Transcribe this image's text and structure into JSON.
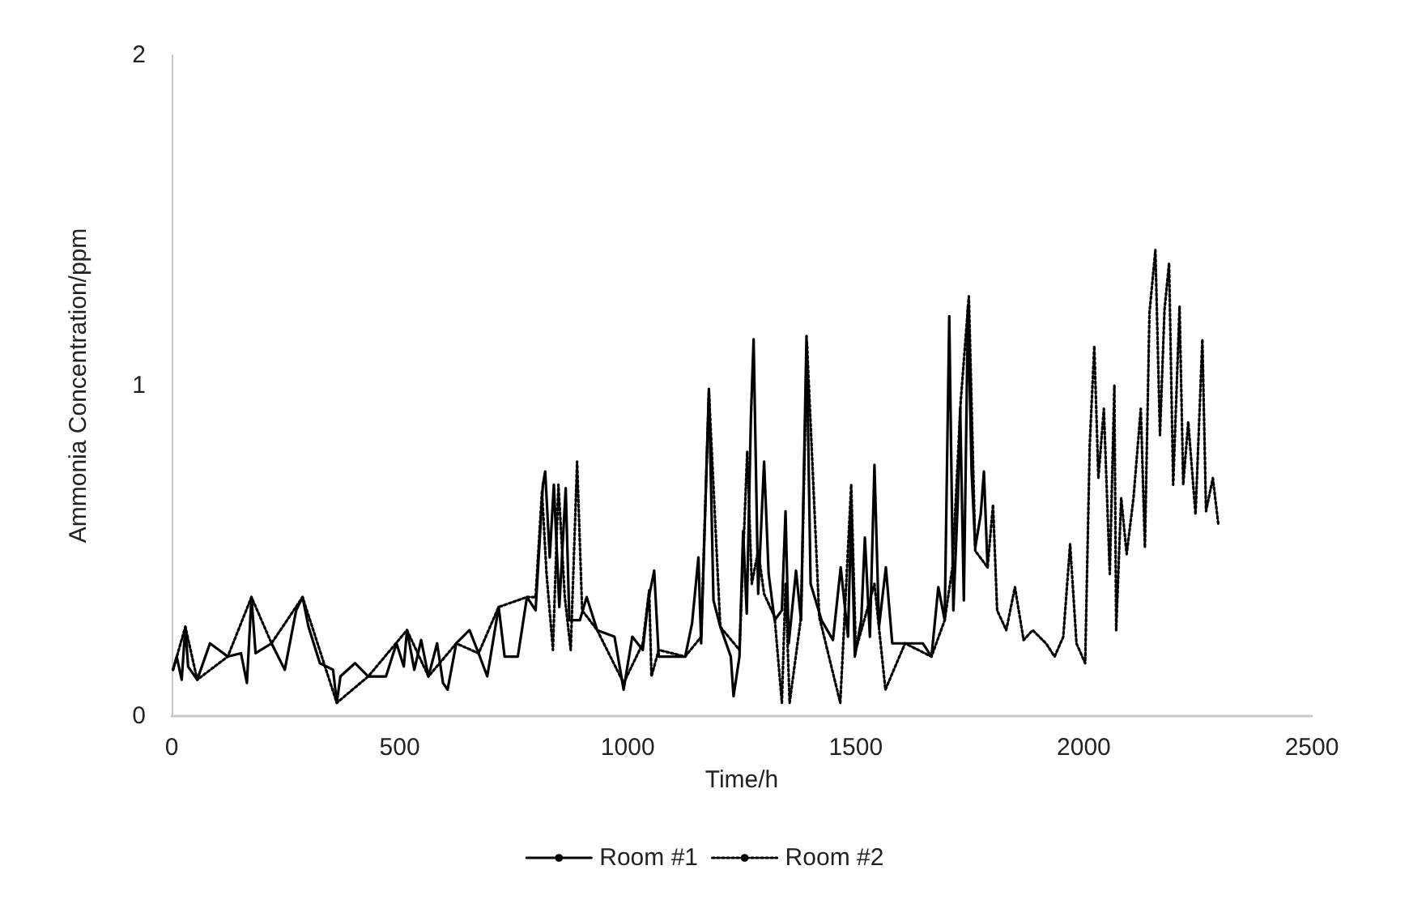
{
  "chart_data": {
    "type": "line",
    "xlabel": "Time/h",
    "ylabel": "Ammonia Concentration/ppm",
    "xlim": [
      0,
      2500
    ],
    "xticks": [
      0,
      500,
      1000,
      1500,
      2000,
      2500
    ],
    "ylim": [
      0,
      2
    ],
    "yticks": [
      0,
      1,
      2
    ],
    "grid": false,
    "legend": "bottom",
    "marker": "none",
    "series": [
      {
        "name": "Room #1",
        "color": "#000000",
        "line_style": "solid",
        "x": [
          3,
          11,
          22,
          30,
          36,
          56,
          84,
          123,
          152,
          165,
          175,
          184,
          219,
          248,
          273,
          287,
          300,
          325,
          354,
          362,
          370,
          402,
          431,
          470,
          493,
          509,
          516,
          532,
          547,
          563,
          582,
          595,
          605,
          624,
          653,
          673,
          692,
          717,
          730,
          759,
          779,
          798,
          814,
          819,
          829,
          838,
          850,
          864,
          872,
          895,
          910,
          933,
          971,
          991,
          1010,
          1033,
          1045,
          1058,
          1068,
          1097,
          1126,
          1141,
          1155,
          1161,
          1178,
          1188,
          1203,
          1226,
          1232,
          1245,
          1253,
          1261,
          1270,
          1276,
          1286,
          1299,
          1309,
          1322,
          1338,
          1346,
          1353,
          1369,
          1380,
          1392,
          1401,
          1425,
          1450,
          1467,
          1483,
          1490,
          1498,
          1512,
          1520,
          1531,
          1541,
          1551,
          1566,
          1580,
          1608,
          1647,
          1666,
          1681,
          1695,
          1705,
          1714,
          1724,
          1729,
          1737,
          1746,
          1754,
          1762,
          1774,
          1781,
          1789
        ],
        "values": [
          0.14,
          0.18,
          0.11,
          0.27,
          0.15,
          0.11,
          0.22,
          0.18,
          0.19,
          0.1,
          0.36,
          0.19,
          0.22,
          0.14,
          0.32,
          0.36,
          0.27,
          0.16,
          0.14,
          0.04,
          0.12,
          0.16,
          0.12,
          0.12,
          0.22,
          0.15,
          0.26,
          0.14,
          0.23,
          0.12,
          0.22,
          0.1,
          0.08,
          0.22,
          0.26,
          0.19,
          0.12,
          0.33,
          0.18,
          0.18,
          0.36,
          0.32,
          0.7,
          0.74,
          0.48,
          0.7,
          0.33,
          0.69,
          0.29,
          0.29,
          0.36,
          0.26,
          0.24,
          0.08,
          0.24,
          0.2,
          0.35,
          0.44,
          0.18,
          0.18,
          0.18,
          0.28,
          0.48,
          0.22,
          0.99,
          0.35,
          0.27,
          0.18,
          0.06,
          0.18,
          0.56,
          0.31,
          0.9,
          1.14,
          0.37,
          0.77,
          0.43,
          0.29,
          0.32,
          0.62,
          0.22,
          0.44,
          0.29,
          1.15,
          0.4,
          0.29,
          0.23,
          0.45,
          0.24,
          0.61,
          0.18,
          0.29,
          0.54,
          0.24,
          0.76,
          0.27,
          0.45,
          0.22,
          0.22,
          0.22,
          0.18,
          0.39,
          0.29,
          1.21,
          0.32,
          0.66,
          0.93,
          0.35,
          1.24,
          0.74,
          0.51,
          0.61,
          0.74,
          0.45
        ]
      },
      {
        "name": "Room #2",
        "color": "#000000",
        "line_style": "dotted",
        "x": [
          3,
          30,
          56,
          123,
          175,
          219,
          287,
          362,
          431,
          516,
          563,
          624,
          673,
          717,
          779,
          798,
          812,
          822,
          836,
          848,
          862,
          875,
          889,
          900,
          933,
          991,
          1033,
          1047,
          1052,
          1068,
          1126,
          1161,
          1178,
          1203,
          1245,
          1262,
          1272,
          1286,
          1299,
          1322,
          1338,
          1346,
          1355,
          1380,
          1393,
          1420,
          1466,
          1490,
          1500,
          1541,
          1565,
          1608,
          1666,
          1695,
          1712,
          1730,
          1748,
          1762,
          1789,
          1801,
          1810,
          1830,
          1849,
          1868,
          1888,
          1917,
          1936,
          1955,
          1970,
          1984,
          2003,
          2013,
          2023,
          2032,
          2044,
          2057,
          2067,
          2071,
          2082,
          2094,
          2109,
          2125,
          2134,
          2144,
          2157,
          2167,
          2177,
          2187,
          2196,
          2210,
          2218,
          2229,
          2245,
          2260,
          2268,
          2283,
          2295
        ],
        "values": [
          0.14,
          0.27,
          0.11,
          0.18,
          0.36,
          0.22,
          0.36,
          0.04,
          0.12,
          0.26,
          0.12,
          0.22,
          0.19,
          0.33,
          0.36,
          0.36,
          0.68,
          0.43,
          0.2,
          0.7,
          0.36,
          0.2,
          0.77,
          0.32,
          0.26,
          0.1,
          0.22,
          0.38,
          0.12,
          0.2,
          0.18,
          0.24,
          0.98,
          0.27,
          0.2,
          0.8,
          0.4,
          0.5,
          0.37,
          0.3,
          0.04,
          0.4,
          0.04,
          0.3,
          1.13,
          0.3,
          0.04,
          0.7,
          0.2,
          0.4,
          0.08,
          0.22,
          0.18,
          0.29,
          0.45,
          0.95,
          1.27,
          0.5,
          0.45,
          0.64,
          0.32,
          0.26,
          0.39,
          0.23,
          0.26,
          0.22,
          0.18,
          0.24,
          0.52,
          0.22,
          0.16,
          0.82,
          1.12,
          0.72,
          0.93,
          0.43,
          1.0,
          0.26,
          0.66,
          0.49,
          0.66,
          0.93,
          0.51,
          1.22,
          1.41,
          0.85,
          1.23,
          1.37,
          0.7,
          1.24,
          0.7,
          0.89,
          0.61,
          1.14,
          0.62,
          0.72,
          0.58
        ]
      }
    ]
  }
}
